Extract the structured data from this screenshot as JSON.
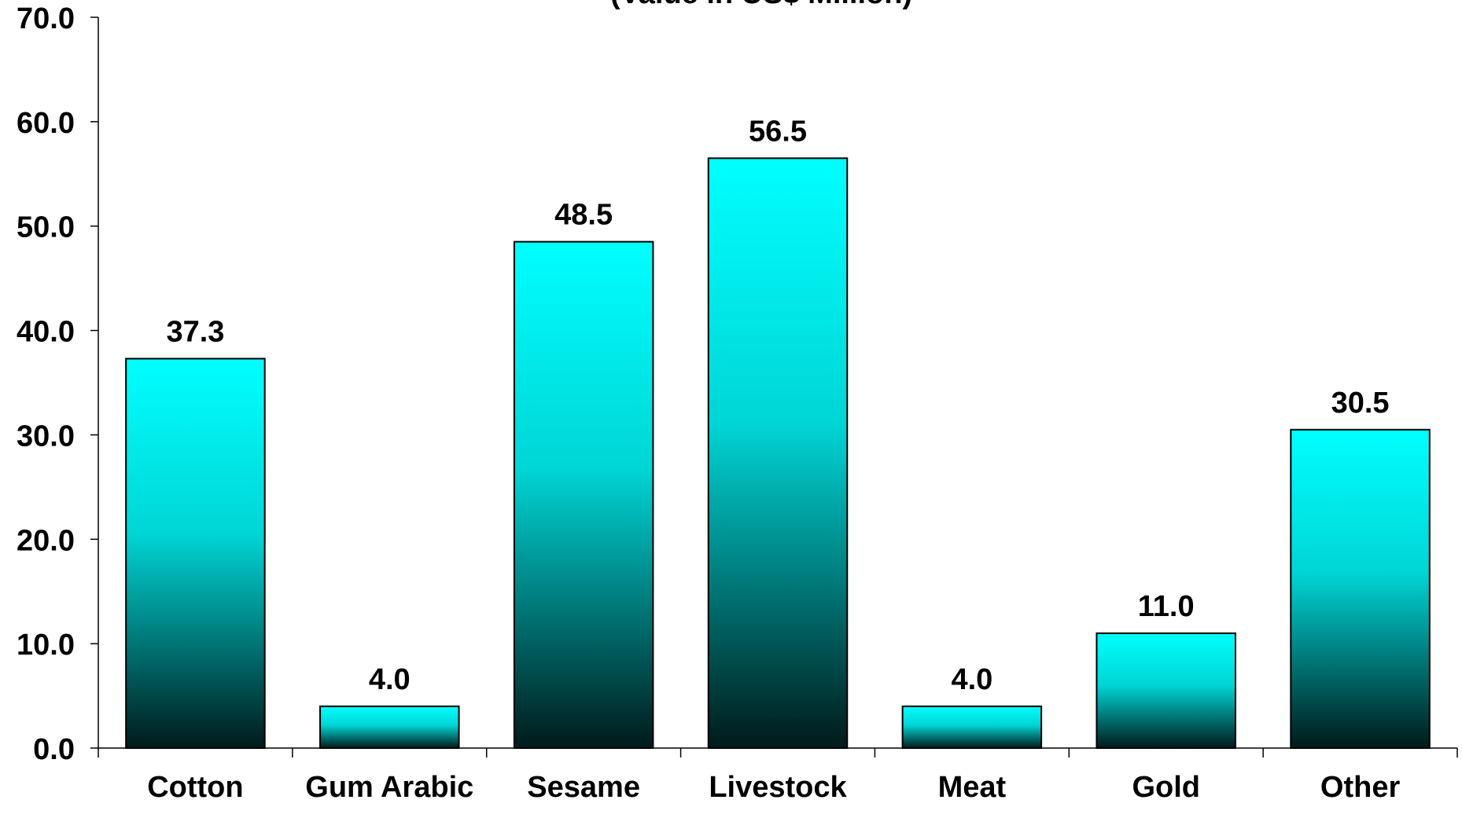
{
  "chart_data": {
    "type": "bar",
    "title": "(Value in US$ Million)",
    "xlabel": "",
    "ylabel": "",
    "categories": [
      "Cotton",
      "Gum Arabic",
      "Sesame",
      "Livestock",
      "Meat",
      "Gold",
      "Other"
    ],
    "values": [
      37.3,
      4.0,
      48.5,
      56.5,
      4.0,
      11.0,
      30.5
    ],
    "value_labels": [
      "37.3",
      "4.0",
      "48.5",
      "56.5",
      "4.0",
      "11.0",
      "30.5"
    ],
    "ylim": [
      0,
      70
    ],
    "yticks": [
      "0.0",
      "10.0",
      "20.0",
      "30.0",
      "40.0",
      "50.0",
      "60.0",
      "70.0"
    ],
    "grid": false,
    "legend": "none",
    "colors": {
      "bar_top": "#00ffff",
      "bar_bottom": "#001a1a",
      "bar_outline": "#000000",
      "axis": "#000000"
    }
  }
}
